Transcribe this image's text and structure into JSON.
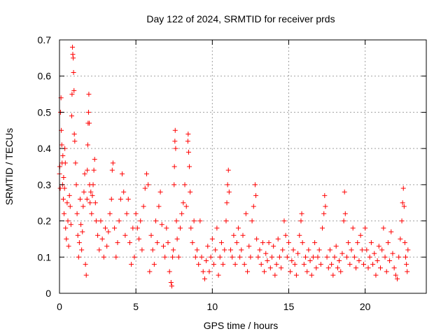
{
  "chart_data": {
    "type": "scatter",
    "title": "Day 122 of 2024, SRMTID for receiver prds",
    "xlabel": "GPS time / hours",
    "ylabel": "SRMTID / TECUs",
    "xlim": [
      0,
      24
    ],
    "ylim": [
      0,
      0.7
    ],
    "xticks": [
      0,
      5,
      10,
      15,
      20
    ],
    "yticks": [
      0,
      0.1,
      0.2,
      0.3,
      0.4,
      0.5,
      0.6,
      0.7
    ],
    "xtick_labels": [
      "0",
      "5",
      "10",
      "15",
      "20"
    ],
    "ytick_labels": [
      "0",
      "0.1",
      "0.2",
      "0.3",
      "0.4",
      "0.5",
      "0.6",
      "0.7"
    ],
    "grid": true,
    "marker": "+",
    "color": "#ff0000",
    "series": [
      {
        "name": "prds",
        "points": [
          [
            0.0,
            0.33
          ],
          [
            0.02,
            0.35
          ],
          [
            0.05,
            0.29
          ],
          [
            0.07,
            0.5
          ],
          [
            0.1,
            0.54
          ],
          [
            0.12,
            0.45
          ],
          [
            0.15,
            0.41
          ],
          [
            0.17,
            0.36
          ],
          [
            0.2,
            0.3
          ],
          [
            0.22,
            0.38
          ],
          [
            0.25,
            0.26
          ],
          [
            0.27,
            0.32
          ],
          [
            0.3,
            0.22
          ],
          [
            0.33,
            0.29
          ],
          [
            0.35,
            0.4
          ],
          [
            0.38,
            0.36
          ],
          [
            0.4,
            0.18
          ],
          [
            0.45,
            0.15
          ],
          [
            0.5,
            0.25
          ],
          [
            0.55,
            0.2
          ],
          [
            0.6,
            0.13
          ],
          [
            0.65,
            0.27
          ],
          [
            0.7,
            0.24
          ],
          [
            0.75,
            0.19
          ],
          [
            0.8,
            0.49
          ],
          [
            0.82,
            0.55
          ],
          [
            0.85,
            0.68
          ],
          [
            0.87,
            0.66
          ],
          [
            0.9,
            0.65
          ],
          [
            0.92,
            0.61
          ],
          [
            0.95,
            0.56
          ],
          [
            0.97,
            0.44
          ],
          [
            1.0,
            0.42
          ],
          [
            1.05,
            0.36
          ],
          [
            1.1,
            0.3
          ],
          [
            1.15,
            0.22
          ],
          [
            1.2,
            0.16
          ],
          [
            1.25,
            0.1
          ],
          [
            1.3,
            0.14
          ],
          [
            1.35,
            0.26
          ],
          [
            1.4,
            0.19
          ],
          [
            1.45,
            0.12
          ],
          [
            1.5,
            0.17
          ],
          [
            1.55,
            0.24
          ],
          [
            1.6,
            0.28
          ],
          [
            1.65,
            0.33
          ],
          [
            1.7,
            0.08
          ],
          [
            1.75,
            0.05
          ],
          [
            1.8,
            0.26
          ],
          [
            1.82,
            0.34
          ],
          [
            1.85,
            0.41
          ],
          [
            1.87,
            0.47
          ],
          [
            1.9,
            0.5
          ],
          [
            1.92,
            0.55
          ],
          [
            1.95,
            0.47
          ],
          [
            1.97,
            0.3
          ],
          [
            2.0,
            0.25
          ],
          [
            2.05,
            0.28
          ],
          [
            2.1,
            0.22
          ],
          [
            2.15,
            0.27
          ],
          [
            2.2,
            0.3
          ],
          [
            2.25,
            0.34
          ],
          [
            2.3,
            0.37
          ],
          [
            2.35,
            0.25
          ],
          [
            2.4,
            0.2
          ],
          [
            2.5,
            0.16
          ],
          [
            2.6,
            0.12
          ],
          [
            2.7,
            0.2
          ],
          [
            2.8,
            0.15
          ],
          [
            2.9,
            0.1
          ],
          [
            3.0,
            0.18
          ],
          [
            3.1,
            0.13
          ],
          [
            3.2,
            0.17
          ],
          [
            3.3,
            0.22
          ],
          [
            3.4,
            0.26
          ],
          [
            3.45,
            0.34
          ],
          [
            3.5,
            0.36
          ],
          [
            3.6,
            0.18
          ],
          [
            3.7,
            0.1
          ],
          [
            3.8,
            0.14
          ],
          [
            3.9,
            0.2
          ],
          [
            4.0,
            0.26
          ],
          [
            4.1,
            0.33
          ],
          [
            4.2,
            0.28
          ],
          [
            4.3,
            0.16
          ],
          [
            4.4,
            0.22
          ],
          [
            4.5,
            0.26
          ],
          [
            4.6,
            0.14
          ],
          [
            4.7,
            0.08
          ],
          [
            4.8,
            0.18
          ],
          [
            4.9,
            0.1
          ],
          [
            5.0,
            0.22
          ],
          [
            5.1,
            0.18
          ],
          [
            5.2,
            0.15
          ],
          [
            5.3,
            0.2
          ],
          [
            5.4,
            0.12
          ],
          [
            5.5,
            0.24
          ],
          [
            5.6,
            0.29
          ],
          [
            5.7,
            0.33
          ],
          [
            5.8,
            0.3
          ],
          [
            5.9,
            0.06
          ],
          [
            6.0,
            0.16
          ],
          [
            6.1,
            0.12
          ],
          [
            6.2,
            0.08
          ],
          [
            6.3,
            0.2
          ],
          [
            6.4,
            0.14
          ],
          [
            6.5,
            0.24
          ],
          [
            6.6,
            0.28
          ],
          [
            6.7,
            0.19
          ],
          [
            6.8,
            0.13
          ],
          [
            6.9,
            0.1
          ],
          [
            7.0,
            0.18
          ],
          [
            7.1,
            0.14
          ],
          [
            7.2,
            0.06
          ],
          [
            7.3,
            0.03
          ],
          [
            7.35,
            0.02
          ],
          [
            7.4,
            0.1
          ],
          [
            7.45,
            0.12
          ],
          [
            7.5,
            0.3
          ],
          [
            7.52,
            0.35
          ],
          [
            7.55,
            0.42
          ],
          [
            7.57,
            0.45
          ],
          [
            7.6,
            0.4
          ],
          [
            7.65,
            0.2
          ],
          [
            7.7,
            0.15
          ],
          [
            7.8,
            0.1
          ],
          [
            7.9,
            0.18
          ],
          [
            8.0,
            0.22
          ],
          [
            8.1,
            0.25
          ],
          [
            8.2,
            0.3
          ],
          [
            8.3,
            0.24
          ],
          [
            8.4,
            0.42
          ],
          [
            8.42,
            0.44
          ],
          [
            8.45,
            0.39
          ],
          [
            8.5,
            0.35
          ],
          [
            8.55,
            0.28
          ],
          [
            8.6,
            0.18
          ],
          [
            8.7,
            0.14
          ],
          [
            8.8,
            0.2
          ],
          [
            8.9,
            0.1
          ],
          [
            9.0,
            0.12
          ],
          [
            9.1,
            0.08
          ],
          [
            9.2,
            0.2
          ],
          [
            9.3,
            0.1
          ],
          [
            9.4,
            0.06
          ],
          [
            9.5,
            0.04
          ],
          [
            9.6,
            0.09
          ],
          [
            9.7,
            0.13
          ],
          [
            9.8,
            0.06
          ],
          [
            9.9,
            0.1
          ],
          [
            10.0,
            0.15
          ],
          [
            10.1,
            0.08
          ],
          [
            10.2,
            0.12
          ],
          [
            10.3,
            0.18
          ],
          [
            10.4,
            0.05
          ],
          [
            10.5,
            0.1
          ],
          [
            10.6,
            0.14
          ],
          [
            10.7,
            0.08
          ],
          [
            10.8,
            0.12
          ],
          [
            10.9,
            0.2
          ],
          [
            10.95,
            0.25
          ],
          [
            11.0,
            0.3
          ],
          [
            11.05,
            0.34
          ],
          [
            11.1,
            0.28
          ],
          [
            11.2,
            0.12
          ],
          [
            11.3,
            0.1
          ],
          [
            11.4,
            0.16
          ],
          [
            11.5,
            0.08
          ],
          [
            11.6,
            0.14
          ],
          [
            11.7,
            0.18
          ],
          [
            11.8,
            0.1
          ],
          [
            11.9,
            0.12
          ],
          [
            12.0,
            0.16
          ],
          [
            12.1,
            0.08
          ],
          [
            12.2,
            0.22
          ],
          [
            12.3,
            0.06
          ],
          [
            12.4,
            0.13
          ],
          [
            12.5,
            0.1
          ],
          [
            12.6,
            0.2
          ],
          [
            12.7,
            0.24
          ],
          [
            12.8,
            0.3
          ],
          [
            12.85,
            0.27
          ],
          [
            12.9,
            0.15
          ],
          [
            13.0,
            0.1
          ],
          [
            13.1,
            0.12
          ],
          [
            13.2,
            0.08
          ],
          [
            13.3,
            0.14
          ],
          [
            13.4,
            0.06
          ],
          [
            13.5,
            0.11
          ],
          [
            13.6,
            0.09
          ],
          [
            13.7,
            0.14
          ],
          [
            13.8,
            0.07
          ],
          [
            13.9,
            0.1
          ],
          [
            14.0,
            0.13
          ],
          [
            14.1,
            0.05
          ],
          [
            14.2,
            0.08
          ],
          [
            14.3,
            0.15
          ],
          [
            14.4,
            0.1
          ],
          [
            14.5,
            0.07
          ],
          [
            14.6,
            0.12
          ],
          [
            14.7,
            0.2
          ],
          [
            14.8,
            0.16
          ],
          [
            14.9,
            0.1
          ],
          [
            15.0,
            0.14
          ],
          [
            15.1,
            0.06
          ],
          [
            15.2,
            0.09
          ],
          [
            15.3,
            0.12
          ],
          [
            15.4,
            0.08
          ],
          [
            15.5,
            0.05
          ],
          [
            15.6,
            0.11
          ],
          [
            15.7,
            0.16
          ],
          [
            15.8,
            0.2
          ],
          [
            15.85,
            0.22
          ],
          [
            15.9,
            0.14
          ],
          [
            16.0,
            0.08
          ],
          [
            16.1,
            0.1
          ],
          [
            16.2,
            0.06
          ],
          [
            16.3,
            0.12
          ],
          [
            16.4,
            0.09
          ],
          [
            16.5,
            0.05
          ],
          [
            16.6,
            0.1
          ],
          [
            16.7,
            0.14
          ],
          [
            16.8,
            0.07
          ],
          [
            16.9,
            0.1
          ],
          [
            17.0,
            0.12
          ],
          [
            17.1,
            0.08
          ],
          [
            17.2,
            0.18
          ],
          [
            17.3,
            0.22
          ],
          [
            17.35,
            0.27
          ],
          [
            17.4,
            0.24
          ],
          [
            17.5,
            0.1
          ],
          [
            17.6,
            0.07
          ],
          [
            17.7,
            0.12
          ],
          [
            17.8,
            0.08
          ],
          [
            17.9,
            0.05
          ],
          [
            18.0,
            0.1
          ],
          [
            18.1,
            0.13
          ],
          [
            18.2,
            0.07
          ],
          [
            18.3,
            0.09
          ],
          [
            18.4,
            0.06
          ],
          [
            18.5,
            0.11
          ],
          [
            18.6,
            0.2
          ],
          [
            18.65,
            0.28
          ],
          [
            18.7,
            0.22
          ],
          [
            18.8,
            0.1
          ],
          [
            18.9,
            0.14
          ],
          [
            19.0,
            0.08
          ],
          [
            19.1,
            0.12
          ],
          [
            19.2,
            0.18
          ],
          [
            19.3,
            0.1
          ],
          [
            19.4,
            0.07
          ],
          [
            19.5,
            0.14
          ],
          [
            19.6,
            0.09
          ],
          [
            19.7,
            0.16
          ],
          [
            19.8,
            0.12
          ],
          [
            19.9,
            0.08
          ],
          [
            20.0,
            0.18
          ],
          [
            20.1,
            0.12
          ],
          [
            20.2,
            0.07
          ],
          [
            20.3,
            0.1
          ],
          [
            20.4,
            0.14
          ],
          [
            20.5,
            0.08
          ],
          [
            20.6,
            0.11
          ],
          [
            20.7,
            0.05
          ],
          [
            20.8,
            0.09
          ],
          [
            20.9,
            0.13
          ],
          [
            21.0,
            0.07
          ],
          [
            21.1,
            0.12
          ],
          [
            21.2,
            0.18
          ],
          [
            21.3,
            0.1
          ],
          [
            21.4,
            0.06
          ],
          [
            21.5,
            0.14
          ],
          [
            21.6,
            0.09
          ],
          [
            21.7,
            0.17
          ],
          [
            21.8,
            0.11
          ],
          [
            21.9,
            0.07
          ],
          [
            22.0,
            0.05
          ],
          [
            22.1,
            0.04
          ],
          [
            22.2,
            0.1
          ],
          [
            22.3,
            0.15
          ],
          [
            22.4,
            0.2
          ],
          [
            22.45,
            0.25
          ],
          [
            22.5,
            0.29
          ],
          [
            22.55,
            0.24
          ],
          [
            22.6,
            0.14
          ],
          [
            22.65,
            0.1
          ],
          [
            22.7,
            0.08
          ],
          [
            22.75,
            0.06
          ],
          [
            22.8,
            0.12
          ]
        ]
      }
    ]
  }
}
